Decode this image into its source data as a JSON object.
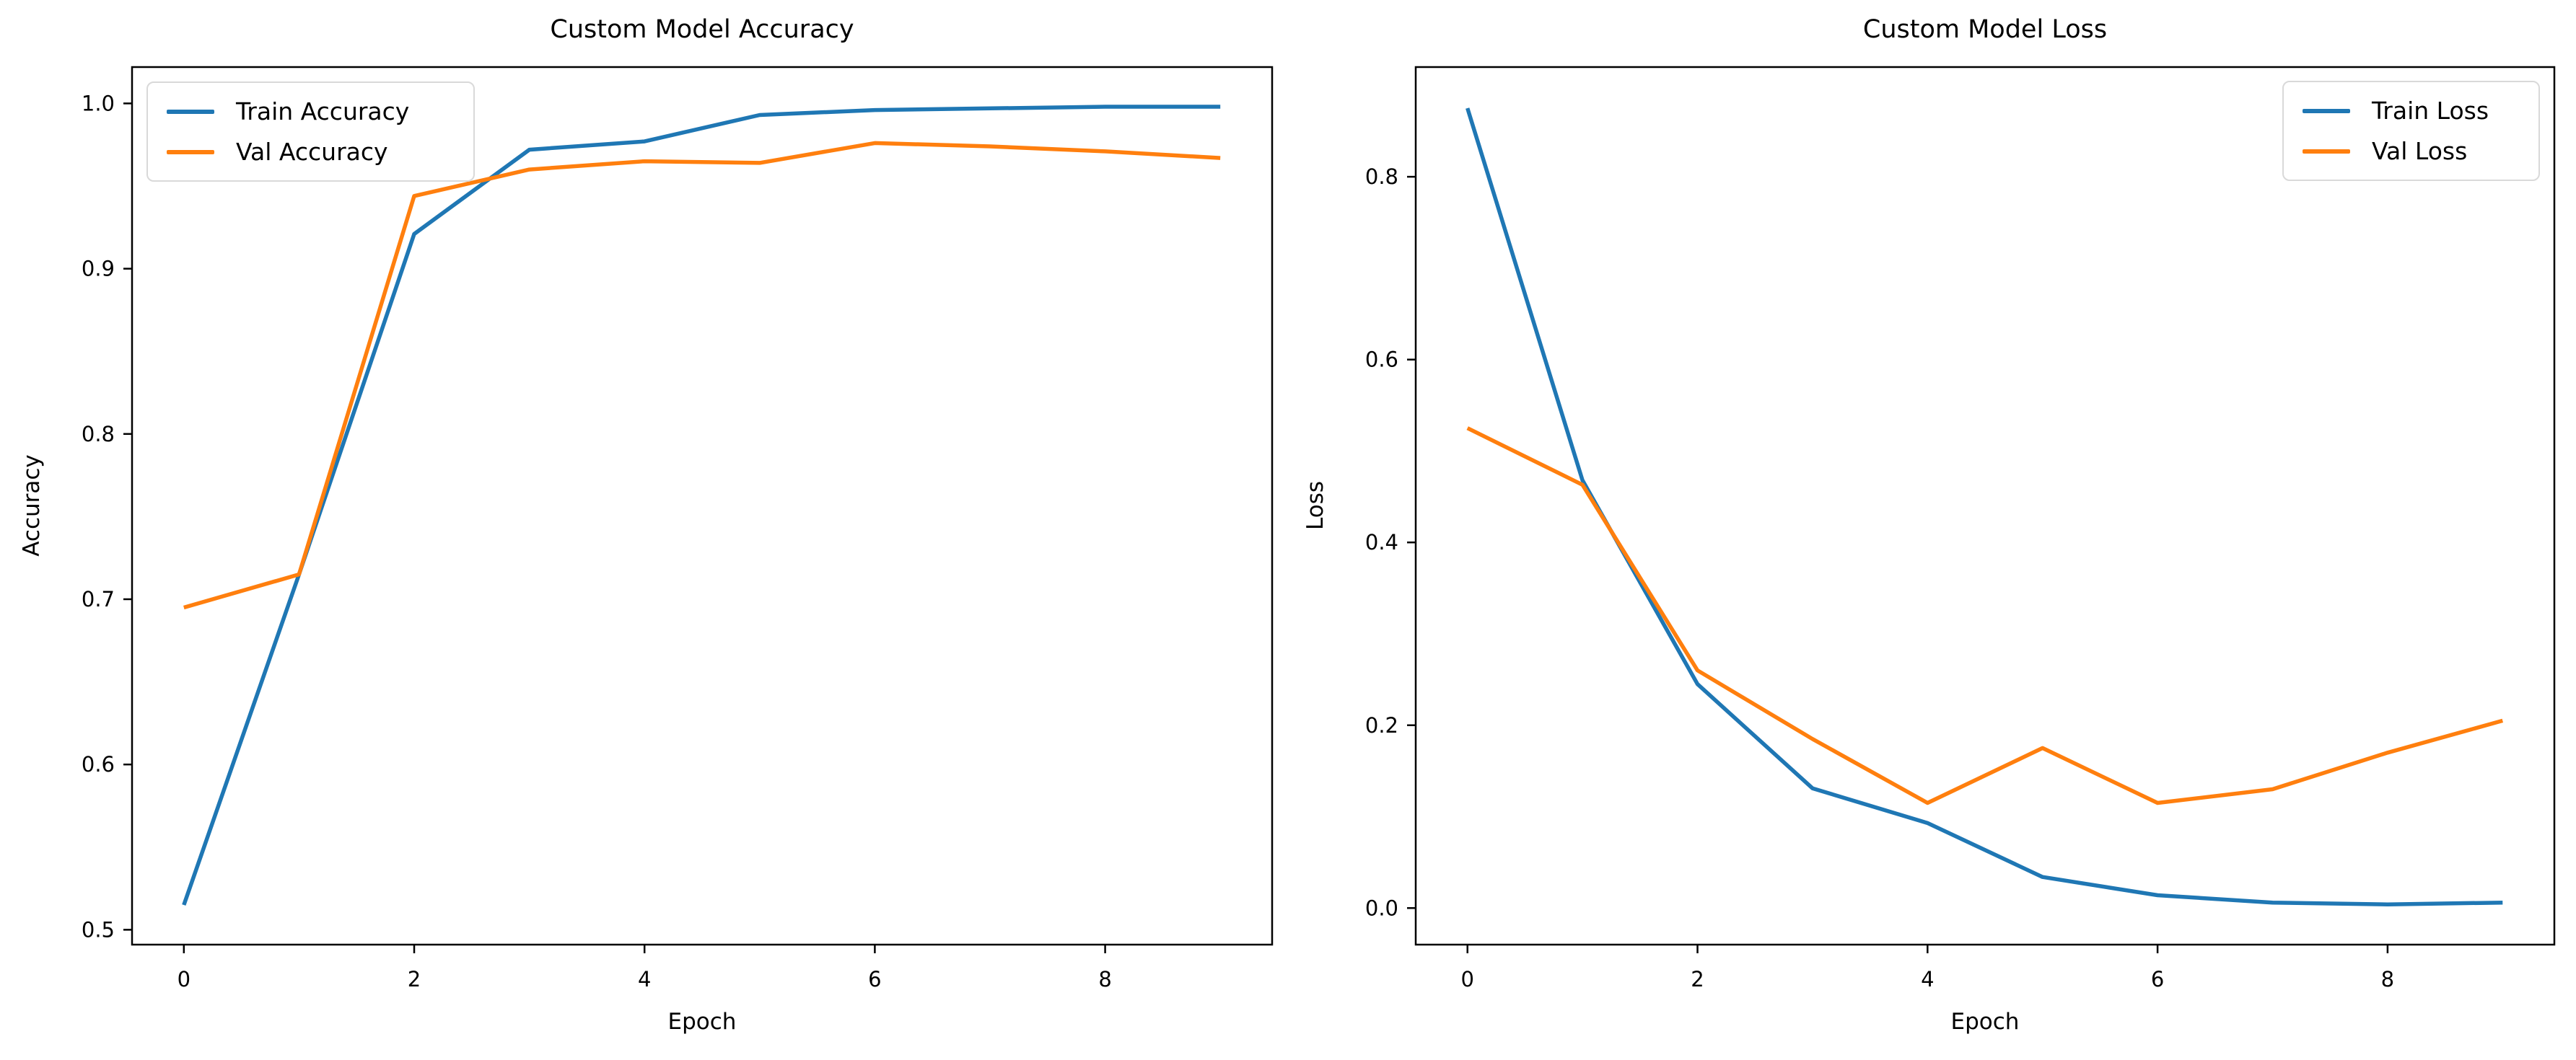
{
  "figure": {
    "background": "#ffffff"
  },
  "chart_data": [
    {
      "type": "line",
      "title": "Custom Model Accuracy",
      "xlabel": "Epoch",
      "ylabel": "Accuracy",
      "x": [
        0,
        1,
        2,
        3,
        4,
        5,
        6,
        7,
        8,
        9
      ],
      "xlim": [
        -0.45,
        9.45
      ],
      "ylim": [
        0.491,
        1.022
      ],
      "xticks": [
        0,
        2,
        4,
        6,
        8
      ],
      "xtick_labels": [
        "0",
        "2",
        "4",
        "6",
        "8"
      ],
      "yticks": [
        0.5,
        0.6,
        0.7,
        0.8,
        0.9,
        1.0
      ],
      "ytick_labels": [
        "0.5",
        "0.6",
        "0.7",
        "0.8",
        "0.9",
        "1.0"
      ],
      "grid": false,
      "legend_position": "upper-left",
      "series": [
        {
          "name": "Train Accuracy",
          "color": "#1f77b4",
          "values": [
            0.515,
            0.715,
            0.921,
            0.972,
            0.977,
            0.993,
            0.996,
            0.997,
            0.998,
            0.998
          ]
        },
        {
          "name": "Val Accuracy",
          "color": "#ff7f0e",
          "values": [
            0.695,
            0.715,
            0.944,
            0.96,
            0.965,
            0.964,
            0.976,
            0.974,
            0.971,
            0.967
          ]
        }
      ]
    },
    {
      "type": "line",
      "title": "Custom Model Loss",
      "xlabel": "Epoch",
      "ylabel": "Loss",
      "x": [
        0,
        1,
        2,
        3,
        4,
        5,
        6,
        7,
        8,
        9
      ],
      "xlim": [
        -0.45,
        9.45
      ],
      "ylim": [
        -0.04,
        0.92
      ],
      "xticks": [
        0,
        2,
        4,
        6,
        8
      ],
      "xtick_labels": [
        "0",
        "2",
        "4",
        "6",
        "8"
      ],
      "yticks": [
        0.0,
        0.2,
        0.4,
        0.6,
        0.8
      ],
      "ytick_labels": [
        "0.0",
        "0.2",
        "0.4",
        "0.6",
        "0.8"
      ],
      "grid": false,
      "legend_position": "upper-right",
      "series": [
        {
          "name": "Train Loss",
          "color": "#1f77b4",
          "values": [
            0.875,
            0.468,
            0.245,
            0.131,
            0.093,
            0.034,
            0.014,
            0.006,
            0.004,
            0.006
          ]
        },
        {
          "name": "Val Loss",
          "color": "#ff7f0e",
          "values": [
            0.525,
            0.463,
            0.26,
            0.185,
            0.115,
            0.175,
            0.115,
            0.13,
            0.17,
            0.205
          ]
        }
      ]
    }
  ]
}
